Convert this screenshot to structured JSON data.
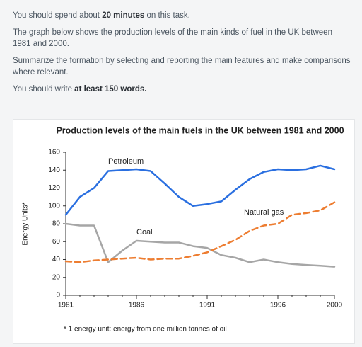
{
  "instructions": [
    [
      {
        "text": "You should spend about "
      },
      {
        "text": "20 minutes",
        "bold": true
      },
      {
        "text": " on this task."
      }
    ],
    [
      {
        "text": "The graph below shows the production levels of the main kinds of fuel in the UK between 1981 and 2000."
      }
    ],
    [
      {
        "text": "Summarize the formation by selecting and reporting the main features and make comparisons where relevant."
      }
    ],
    [
      {
        "text": "You should write "
      },
      {
        "text": "at least 150 words.",
        "bold": true
      }
    ]
  ],
  "chart_data": {
    "type": "line",
    "title": "Production levels of the main fuels in the UK between 1981 and 2000",
    "y_label": "Energy Units*",
    "footnote": "* 1 energy  unit: energy from one million tonnes of oil",
    "x": [
      1981,
      1982,
      1983,
      1984,
      1985,
      1986,
      1987,
      1988,
      1989,
      1990,
      1991,
      1992,
      1993,
      1994,
      1995,
      1996,
      1997,
      1998,
      1999,
      2000
    ],
    "xlim": [
      1981,
      2000
    ],
    "xticks": [
      1981,
      1986,
      1991,
      1996,
      2000
    ],
    "ylim": [
      0,
      160
    ],
    "yticks": [
      0,
      20,
      40,
      60,
      80,
      100,
      120,
      140,
      160
    ],
    "series": [
      {
        "name": "Petroleum",
        "color": "#2a6fe0",
        "dashed": false,
        "values": [
          90,
          110,
          120,
          139,
          140,
          141,
          139,
          125,
          110,
          100,
          102,
          105,
          118,
          130,
          138,
          141,
          140,
          141,
          145,
          141
        ]
      },
      {
        "name": "Coal",
        "color": "#a6a6a6",
        "dashed": false,
        "values": [
          80,
          78,
          78,
          37,
          50,
          61,
          60,
          59,
          59,
          55,
          53,
          45,
          42,
          37,
          40,
          37,
          35,
          34,
          33,
          32
        ]
      },
      {
        "name": "Natural gas",
        "color": "#ed7d31",
        "dashed": true,
        "values": [
          38,
          37,
          39,
          40,
          41,
          42,
          40,
          41,
          41,
          44,
          48,
          55,
          62,
          72,
          78,
          80,
          90,
          92,
          95,
          104
        ]
      }
    ]
  }
}
